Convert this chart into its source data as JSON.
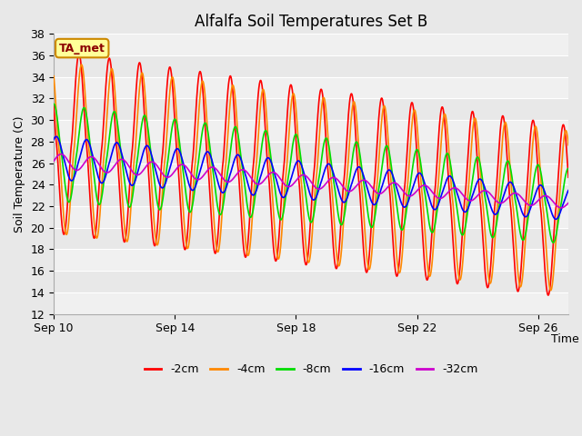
{
  "title": "Alfalfa Soil Temperatures Set B",
  "xlabel": "Time",
  "ylabel": "Soil Temperature (C)",
  "ylim": [
    12,
    38
  ],
  "background_color": "#e8e8e8",
  "annotation_label": "TA_met",
  "annotation_bg": "#ffff99",
  "annotation_border": "#cc8800",
  "x_tick_labels": [
    "Sep 10",
    "Sep 14",
    "Sep 18",
    "Sep 22",
    "Sep 26"
  ],
  "x_tick_positions": [
    0,
    4,
    8,
    12,
    16
  ],
  "y_ticks": [
    12,
    14,
    16,
    18,
    20,
    22,
    24,
    26,
    28,
    30,
    32,
    34,
    36,
    38
  ],
  "legend_entries": [
    "-2cm",
    "-4cm",
    "-8cm",
    "-16cm",
    "-32cm"
  ],
  "line_colors": [
    "#ff0000",
    "#ff8800",
    "#00dd00",
    "#0000ff",
    "#cc00cc"
  ],
  "line_widths": [
    1.2,
    1.2,
    1.2,
    1.2,
    1.2
  ],
  "stripe_colors": [
    "#d8d8d8",
    "#e8e8e8"
  ],
  "white_stripe": "#f0f0f0"
}
